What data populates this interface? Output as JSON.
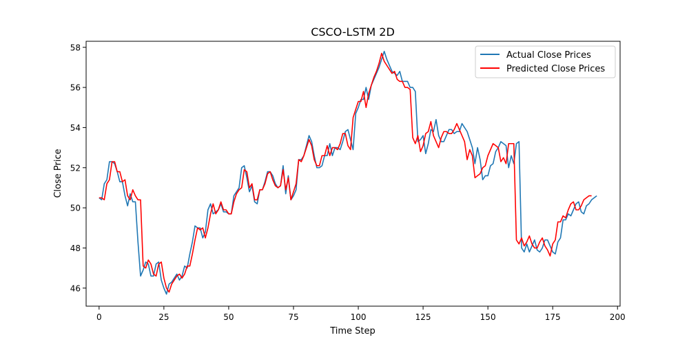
{
  "chart_data": {
    "type": "line",
    "title": "CSCO-LSTM 2D",
    "xlabel": "Time Step",
    "ylabel": "Close Price",
    "xlim": [
      -5,
      201
    ],
    "ylim": [
      45.1,
      58.3
    ],
    "xticks": [
      0,
      25,
      50,
      75,
      100,
      125,
      150,
      175,
      200
    ],
    "yticks": [
      46,
      48,
      50,
      52,
      54,
      56,
      58
    ],
    "legend_position": "top-right",
    "grid": false,
    "series": [
      {
        "name": "Actual Close Prices",
        "color": "#1f77b4",
        "values": [
          50.5,
          50.4,
          51.2,
          51.4,
          52.3,
          52.3,
          52.2,
          51.8,
          51.3,
          51.3,
          50.6,
          50.1,
          50.7,
          50.3,
          50.3,
          48.3,
          46.6,
          46.9,
          47.3,
          47.2,
          46.6,
          46.6,
          47.2,
          47.3,
          46.4,
          46.0,
          45.7,
          46.2,
          46.3,
          46.5,
          46.7,
          46.4,
          46.6,
          47.1,
          47.0,
          47.7,
          48.3,
          49.1,
          49.0,
          49.0,
          48.5,
          48.8,
          49.9,
          50.2,
          49.7,
          49.8,
          49.9,
          50.2,
          49.8,
          49.8,
          49.7,
          49.7,
          50.6,
          50.8,
          51.0,
          52.0,
          52.1,
          51.5,
          50.8,
          51.1,
          50.3,
          50.2,
          50.9,
          50.9,
          51.3,
          51.8,
          51.8,
          51.6,
          51.2,
          51.0,
          51.1,
          52.1,
          50.7,
          51.6,
          50.4,
          50.6,
          50.9,
          52.4,
          52.4,
          52.6,
          53.1,
          53.6,
          53.3,
          52.6,
          52.0,
          52.0,
          52.1,
          52.6,
          52.6,
          53.2,
          52.6,
          53.0,
          53.0,
          52.9,
          53.3,
          53.8,
          53.9,
          53.4,
          52.9,
          54.7,
          55.0,
          55.4,
          55.4,
          56.0,
          55.4,
          56.1,
          56.4,
          56.7,
          57.0,
          57.4,
          57.8,
          57.4,
          57.1,
          56.8,
          56.7,
          56.6,
          56.8,
          56.3,
          56.3,
          56.3,
          56.0,
          56.0,
          55.8,
          53.3,
          53.4,
          53.6,
          52.7,
          53.2,
          53.9,
          53.8,
          54.4,
          53.6,
          53.3,
          53.3,
          53.6,
          53.9,
          53.9,
          53.7,
          53.8,
          53.8,
          54.2,
          54.0,
          53.8,
          53.4,
          53.0,
          52.2,
          53.0,
          52.4,
          51.4,
          51.6,
          51.6,
          52.1,
          52.2,
          52.8,
          53.0,
          53.3,
          53.2,
          53.1,
          52.0,
          52.6,
          52.2,
          53.2,
          53.3,
          48.0,
          47.8,
          48.2,
          47.8,
          48.1,
          48.4,
          47.9,
          47.8,
          48.0,
          48.4,
          48.4,
          48.1,
          47.8,
          47.7,
          48.3,
          48.5,
          49.4,
          49.4,
          49.7,
          49.6,
          49.9,
          50.2,
          50.3,
          49.8,
          49.7,
          50.1,
          50.2,
          50.4,
          50.5,
          50.6
        ]
      },
      {
        "name": "Predicted Close Prices",
        "color": "#ff0000",
        "values": [
          50.5,
          50.5,
          50.4,
          51.2,
          51.4,
          52.3,
          52.3,
          51.8,
          51.8,
          51.3,
          51.4,
          50.6,
          50.4,
          50.9,
          50.6,
          50.4,
          50.4,
          47.1,
          47.0,
          47.4,
          47.2,
          46.7,
          46.6,
          47.2,
          47.3,
          46.5,
          46.0,
          45.8,
          46.2,
          46.4,
          46.6,
          46.7,
          46.5,
          46.7,
          47.1,
          47.1,
          47.7,
          48.4,
          49.0,
          48.9,
          49.0,
          48.5,
          49.0,
          49.7,
          50.2,
          49.7,
          49.9,
          50.3,
          49.9,
          49.9,
          49.7,
          49.7,
          50.3,
          50.7,
          50.9,
          51.0,
          51.9,
          51.8,
          51.0,
          51.2,
          50.4,
          50.4,
          50.9,
          50.9,
          51.2,
          51.7,
          51.8,
          51.4,
          51.1,
          51.0,
          51.1,
          51.9,
          50.9,
          51.5,
          50.4,
          50.8,
          51.2,
          52.4,
          52.3,
          52.6,
          53.0,
          53.4,
          53.1,
          52.4,
          52.1,
          52.1,
          52.6,
          52.6,
          53.1,
          52.6,
          53.0,
          53.0,
          52.9,
          53.2,
          53.7,
          53.7,
          53.1,
          52.9,
          54.5,
          54.9,
          55.3,
          55.3,
          55.8,
          55.0,
          55.7,
          56.1,
          56.5,
          56.8,
          57.2,
          57.7,
          57.3,
          57.1,
          56.9,
          56.7,
          56.8,
          56.4,
          56.3,
          56.3,
          56.0,
          56.0,
          55.9,
          53.5,
          53.2,
          53.6,
          52.8,
          53.1,
          53.7,
          53.8,
          54.3,
          53.6,
          53.3,
          53.0,
          53.5,
          53.8,
          53.8,
          53.7,
          53.7,
          53.9,
          54.2,
          53.9,
          53.6,
          53.3,
          52.4,
          52.9,
          52.6,
          51.5,
          51.6,
          51.7,
          52.0,
          52.1,
          52.6,
          52.9,
          53.2,
          53.1,
          53.0,
          52.3,
          52.5,
          52.2,
          53.2,
          53.2,
          53.2,
          48.4,
          48.2,
          48.5,
          48.1,
          48.3,
          48.6,
          48.2,
          48.0,
          48.0,
          48.3,
          48.5,
          48.1,
          47.9,
          47.6,
          48.2,
          48.4,
          49.3,
          49.3,
          49.6,
          49.5,
          49.9,
          50.2,
          50.3,
          49.9,
          49.9,
          50.1,
          50.4,
          50.5,
          50.6,
          50.6
        ]
      }
    ]
  }
}
